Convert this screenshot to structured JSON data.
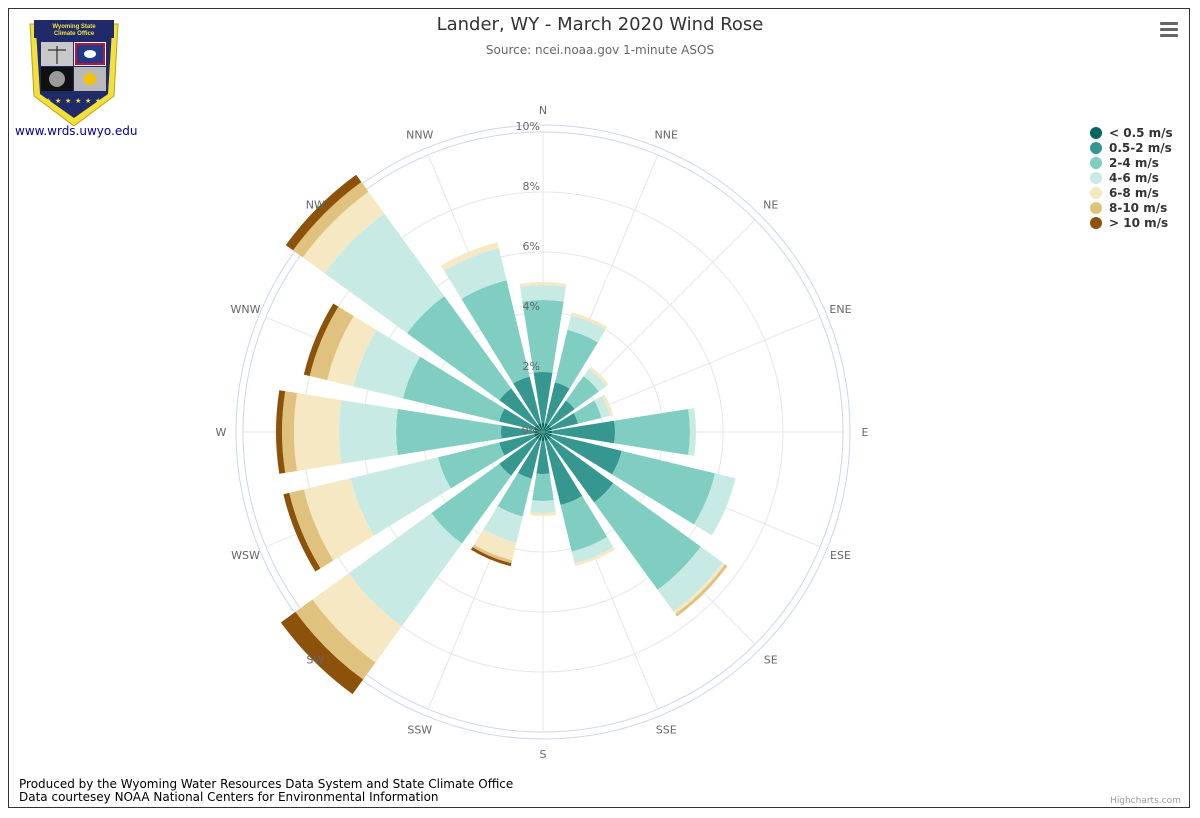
{
  "header": {
    "title": "Lander, WY - March 2020 Wind Rose",
    "subtitle": "Source: ncei.noaa.gov 1-minute ASOS"
  },
  "logo": {
    "top_text_1": "Wyoming State",
    "top_text_2": "Climate Office",
    "link_text": "www.wrds.uwyo.edu",
    "colors": {
      "shield_navy": "#1f2a6b",
      "shield_gold": "#f3e03a"
    }
  },
  "footer": {
    "line1": "Produced by the Wyoming Water Resources Data System and State Climate Office",
    "line2": "Data courtesey NOAA National Centers for Environmental Information"
  },
  "credits": "Highcharts.com",
  "menu": {
    "icon": "hamburger-menu-icon"
  },
  "chart_data": {
    "type": "bar",
    "polar": true,
    "stacking": "normal",
    "title": "Lander, WY - March 2020 Wind Rose",
    "subtitle": "Source: ncei.noaa.gov 1-minute ASOS",
    "categories": [
      "N",
      "NNE",
      "NE",
      "ENE",
      "E",
      "ESE",
      "SE",
      "SSE",
      "S",
      "SSW",
      "SW",
      "WSW",
      "W",
      "WNW",
      "NW",
      "NNW"
    ],
    "y_axis": {
      "ticks": [
        "2%",
        "4%",
        "6%",
        "8%",
        "10%"
      ],
      "tick_values": [
        2,
        4,
        6,
        8,
        10
      ],
      "max": 10
    },
    "legend_position": "top-right",
    "series": [
      {
        "name": "< 0.5 m/s",
        "color": "#01665e",
        "values": [
          0.3,
          0.3,
          0.3,
          0.3,
          0.3,
          0.3,
          0.3,
          0.3,
          0.3,
          0.3,
          0.3,
          0.3,
          0.3,
          0.3,
          0.3,
          0.3
        ]
      },
      {
        "name": "0.5-2 m/s",
        "color": "#35978f",
        "values": [
          1.7,
          1.4,
          1.0,
          0.9,
          2.1,
          2.4,
          2.6,
          2.2,
          1.1,
          1.3,
          1.5,
          1.2,
          1.1,
          1.2,
          1.5,
          1.6
        ]
      },
      {
        "name": "2-4 m/s",
        "color": "#80cdc1",
        "values": [
          2.4,
          1.8,
          1.0,
          0.8,
          2.5,
          3.2,
          3.6,
          1.6,
          0.9,
          1.3,
          2.8,
          2.1,
          3.5,
          3.3,
          3.8,
          3.3
        ]
      },
      {
        "name": "4-6 m/s",
        "color": "#c7eae5",
        "values": [
          0.5,
          0.5,
          0.3,
          0.3,
          0.2,
          0.7,
          0.9,
          0.4,
          0.4,
          0.9,
          3.4,
          3.0,
          1.9,
          1.7,
          3.4,
          1.1
        ]
      },
      {
        "name": "6-8 m/s",
        "color": "#f6e8c3",
        "values": [
          0.1,
          0.1,
          0.1,
          0.1,
          0.0,
          0.0,
          0.1,
          0.1,
          0.1,
          0.6,
          1.5,
          1.6,
          1.5,
          0.9,
          0.9,
          0.2
        ]
      },
      {
        "name": "8-10 m/s",
        "color": "#dfc27d",
        "values": [
          0.0,
          0.0,
          0.0,
          0.0,
          0.0,
          0.0,
          0.1,
          0.0,
          0.0,
          0.1,
          0.7,
          0.5,
          0.4,
          0.6,
          0.4,
          0.0
        ]
      },
      {
        "name": "> 10 m/s",
        "color": "#8c510a",
        "values": [
          0.0,
          0.0,
          0.0,
          0.0,
          0.0,
          0.0,
          0.0,
          0.0,
          0.0,
          0.1,
          0.6,
          0.2,
          0.2,
          0.2,
          0.3,
          0.0
        ]
      }
    ]
  }
}
